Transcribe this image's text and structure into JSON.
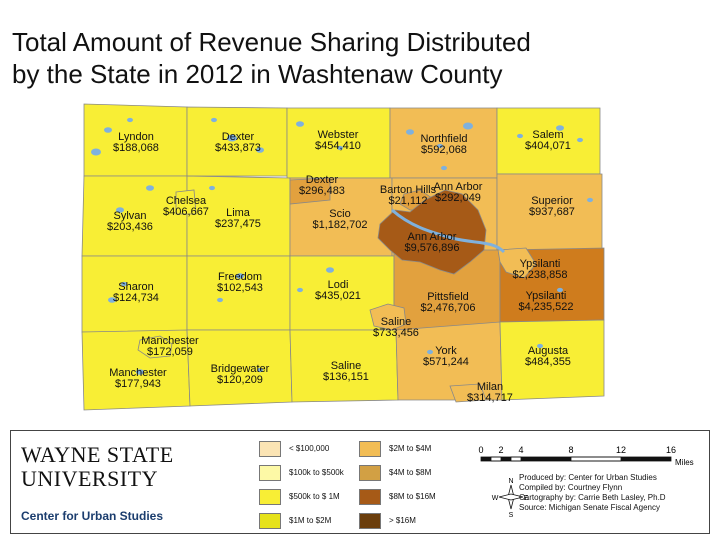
{
  "title": {
    "line1": "Total Amount of Revenue Sharing Distributed",
    "line2": "by the State in 2012 in Washtenaw County"
  },
  "colors": {
    "lt100k": "#fbe4b4",
    "100k_500k": "#fdf9a6",
    "500k_1m": "#f8ee35",
    "1m_2m": "#e6e21a",
    "2m_4m": "#f2bd55",
    "4m_8m": "#d2a044",
    "8m_16m": "#a65a17",
    "gt16m": "#6b3e0c",
    "tan_city": "#e2a13e",
    "med_brown": "#cf7c1d",
    "water": "#7fb1dd",
    "border": "#888888"
  },
  "townships": [
    {
      "name": "Lyndon",
      "value": "$188,068"
    },
    {
      "name": "Dexter",
      "value": "$433,873"
    },
    {
      "name": "Webster",
      "value": "$454,410"
    },
    {
      "name": "Northfield",
      "value": "$592,068"
    },
    {
      "name": "Salem",
      "value": "$404,071"
    },
    {
      "name": "Sylvan",
      "value": "$203,436"
    },
    {
      "name": "Chelsea",
      "value": "$406,667"
    },
    {
      "name": "Lima",
      "value": "$237,475"
    },
    {
      "name": "Dexter",
      "value": "$296,483"
    },
    {
      "name": "Scio",
      "value": "$1,182,702"
    },
    {
      "name": "Barton Hills",
      "value": "$21,112"
    },
    {
      "name": "Ann Arbor",
      "value": "$292,049"
    },
    {
      "name": "Superior",
      "value": "$937,687"
    },
    {
      "name": "Ann Arbor",
      "value": "$9,576,896"
    },
    {
      "name": "Ypsilanti",
      "value": "$2,238,858"
    },
    {
      "name": "Sharon",
      "value": "$124,734"
    },
    {
      "name": "Freedom",
      "value": "$102,543"
    },
    {
      "name": "Lodi",
      "value": "$435,021"
    },
    {
      "name": "Pittsfield",
      "value": "$2,476,706"
    },
    {
      "name": "Ypsilanti",
      "value": "$4,235,522"
    },
    {
      "name": "Manchester",
      "value": "$172,059"
    },
    {
      "name": "Saline",
      "value": "$733,456"
    },
    {
      "name": "Manchester",
      "value": "$177,943"
    },
    {
      "name": "Bridgewater",
      "value": "$120,209"
    },
    {
      "name": "Saline",
      "value": "$136,151"
    },
    {
      "name": "York",
      "value": "$571,244"
    },
    {
      "name": "Augusta",
      "value": "$484,355"
    },
    {
      "name": "Milan",
      "value": "$314,717"
    }
  ],
  "legend": {
    "items": [
      {
        "label": "< $100,000",
        "color": "#fbe4b4"
      },
      {
        "label": "$100k to $500k",
        "color": "#fdf9a6"
      },
      {
        "label": "$500k to $ 1M",
        "color": "#f8ee35"
      },
      {
        "label": "$1M to $2M",
        "color": "#e6e21a"
      },
      {
        "label": "$2M to $4M",
        "color": "#f2bd55"
      },
      {
        "label": "$4M to $8M",
        "color": "#d2a044"
      },
      {
        "label": "$8M to $16M",
        "color": "#a65a17"
      },
      {
        "label": "> $16M",
        "color": "#6b3e0c"
      }
    ]
  },
  "scalebar": {
    "ticks": [
      "0",
      "2",
      "4",
      "8",
      "12",
      "16"
    ],
    "unit": "Miles"
  },
  "compass": {
    "n": "N",
    "s": "S",
    "e": "E",
    "w": "W"
  },
  "logo": {
    "line1": "WAYNE STATE",
    "line2": "UNIVERSITY",
    "center": "Center for Urban Studies"
  },
  "credits": {
    "produced": "Produced by: Center for Urban Studies",
    "compiled": "Compiled by: Courtney Flynn",
    "cartography": "Cartography by: Carrie Beth Lasley, Ph.D",
    "source": "Source: Michigan Senate Fiscal Agency"
  }
}
